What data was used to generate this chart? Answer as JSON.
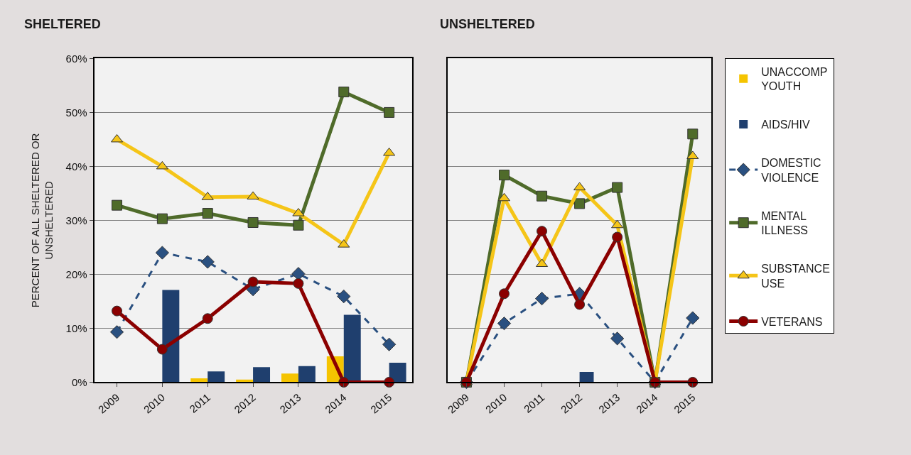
{
  "chart_data": [
    {
      "type": "line",
      "title": "SHELTERED",
      "ylabel": "PERCENT OF ALL SHELTERED OR UNSHELTERED",
      "categories": [
        "2009",
        "2010",
        "2011",
        "2012",
        "2013",
        "2014",
        "2015"
      ],
      "ylim": [
        0,
        60
      ],
      "yticks": [
        {
          "value": 0,
          "label": "0%"
        },
        {
          "value": 10,
          "label": "10%"
        },
        {
          "value": 20,
          "label": "20%"
        },
        {
          "value": 30,
          "label": "30%"
        },
        {
          "value": 40,
          "label": "40%"
        },
        {
          "value": 50,
          "label": "50%"
        },
        {
          "value": 60,
          "label": "60%"
        }
      ],
      "grid": "y",
      "series": [
        {
          "type": "bar",
          "color": "#f5c400",
          "values": [
            0,
            0,
            0.7,
            0.5,
            1.6,
            4.8,
            0
          ]
        },
        {
          "type": "bar",
          "color": "#1f3f6e",
          "values": [
            0,
            17.1,
            2.0,
            2.8,
            3.0,
            12.5,
            3.6
          ]
        },
        {
          "color": "#2a5080",
          "marker": "diamond",
          "line_style": "dashed",
          "values": [
            9.3,
            24.0,
            22.3,
            17.2,
            20.1,
            15.9,
            7.0
          ]
        },
        {
          "color": "#4f6b2a",
          "marker": "square",
          "line_style": "solid",
          "values": [
            32.8,
            30.3,
            31.3,
            29.6,
            29.1,
            53.8,
            50.0
          ]
        },
        {
          "color": "#f5c518",
          "marker": "triangle",
          "line_style": "solid",
          "values": [
            45.0,
            40.0,
            34.3,
            34.4,
            31.3,
            25.5,
            42.5
          ]
        },
        {
          "color": "#8b0000",
          "marker": "circle",
          "line_style": "solid",
          "values": [
            13.2,
            6.1,
            11.8,
            18.6,
            18.3,
            0,
            0
          ]
        }
      ]
    },
    {
      "type": "line",
      "title": "UNSHELTERED",
      "categories": [
        "2009",
        "2010",
        "2011",
        "2012",
        "2013",
        "2014",
        "2015"
      ],
      "ylim": [
        0,
        60
      ],
      "yticks": [
        {
          "value": 0,
          "label": null
        },
        {
          "value": 10,
          "label": null
        },
        {
          "value": 20,
          "label": null
        },
        {
          "value": 30,
          "label": null
        },
        {
          "value": 40,
          "label": null
        },
        {
          "value": 50,
          "label": null
        },
        {
          "value": 60,
          "label": null
        }
      ],
      "grid": "y",
      "tick_labels": "x",
      "legend": "right",
      "series": [
        {
          "name": "UNACCOMP YOUTH",
          "type": "bar",
          "color": "#f5c400",
          "values": [
            0,
            0,
            0,
            0,
            0,
            0,
            0
          ]
        },
        {
          "name": "AIDS/HIV",
          "type": "bar",
          "color": "#1f3f6e",
          "values": [
            0,
            0,
            0,
            1.9,
            0,
            0,
            0
          ]
        },
        {
          "name": "DOMESTIC VIOLENCE",
          "color": "#2a5080",
          "marker": "diamond",
          "line_style": "dashed",
          "values": [
            0,
            10.9,
            15.5,
            16.4,
            8.1,
            0,
            11.9
          ]
        },
        {
          "name": "MENTAL ILLNESS",
          "color": "#4f6b2a",
          "marker": "square",
          "line_style": "solid",
          "values": [
            0,
            38.4,
            34.5,
            33.1,
            36.1,
            0,
            46.0
          ]
        },
        {
          "name": "SUBSTANCE USE",
          "color": "#f5c518",
          "marker": "triangle",
          "line_style": "solid",
          "values": [
            0,
            34.1,
            21.9,
            36.1,
            29.1,
            0,
            41.9
          ]
        },
        {
          "name": "VETERANS",
          "color": "#8b0000",
          "marker": "circle",
          "line_style": "solid",
          "values": [
            0,
            16.4,
            28.0,
            14.4,
            26.9,
            0,
            0
          ]
        }
      ]
    }
  ]
}
